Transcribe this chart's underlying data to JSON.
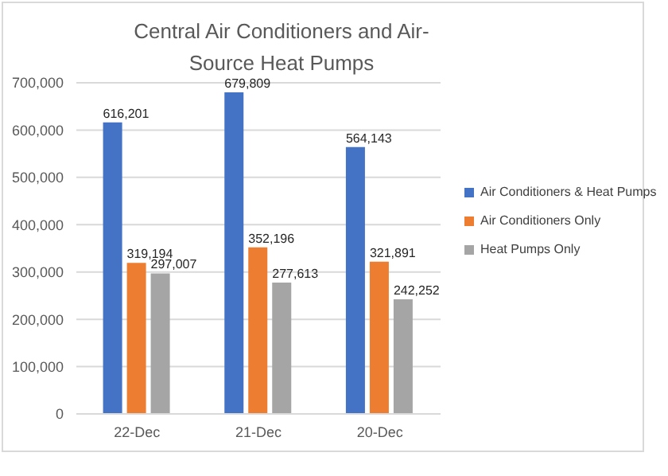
{
  "chart_data": {
    "type": "bar",
    "title": "Central Air Conditioners and Air-Source Heat Pumps",
    "categories": [
      "22-Dec",
      "21-Dec",
      "20-Dec"
    ],
    "series": [
      {
        "name": "Air Conditioners & Heat Pumps",
        "color": "#4472c4",
        "values": [
          616201,
          679809,
          564143
        ],
        "value_labels": [
          "616,201",
          "679,809",
          "564,143"
        ]
      },
      {
        "name": "Air Conditioners Only",
        "color": "#ed7d31",
        "values": [
          319194,
          352196,
          321891
        ],
        "value_labels": [
          "319,194",
          "352,196",
          "321,891"
        ]
      },
      {
        "name": "Heat Pumps Only",
        "color": "#a5a5a5",
        "values": [
          297007,
          277613,
          242252
        ],
        "value_labels": [
          "297,007",
          "277,613",
          "242,252"
        ]
      }
    ],
    "ylim": [
      0,
      700000
    ],
    "yticks": [
      {
        "value": 0,
        "label": "0"
      },
      {
        "value": 100000,
        "label": "100,000"
      },
      {
        "value": 200000,
        "label": "200,000"
      },
      {
        "value": 300000,
        "label": "300,000"
      },
      {
        "value": 400000,
        "label": "400,000"
      },
      {
        "value": 500000,
        "label": "500,000"
      },
      {
        "value": 600000,
        "label": "600,000"
      },
      {
        "value": 700000,
        "label": "700,000"
      }
    ],
    "grid": "y",
    "legend": "right"
  }
}
